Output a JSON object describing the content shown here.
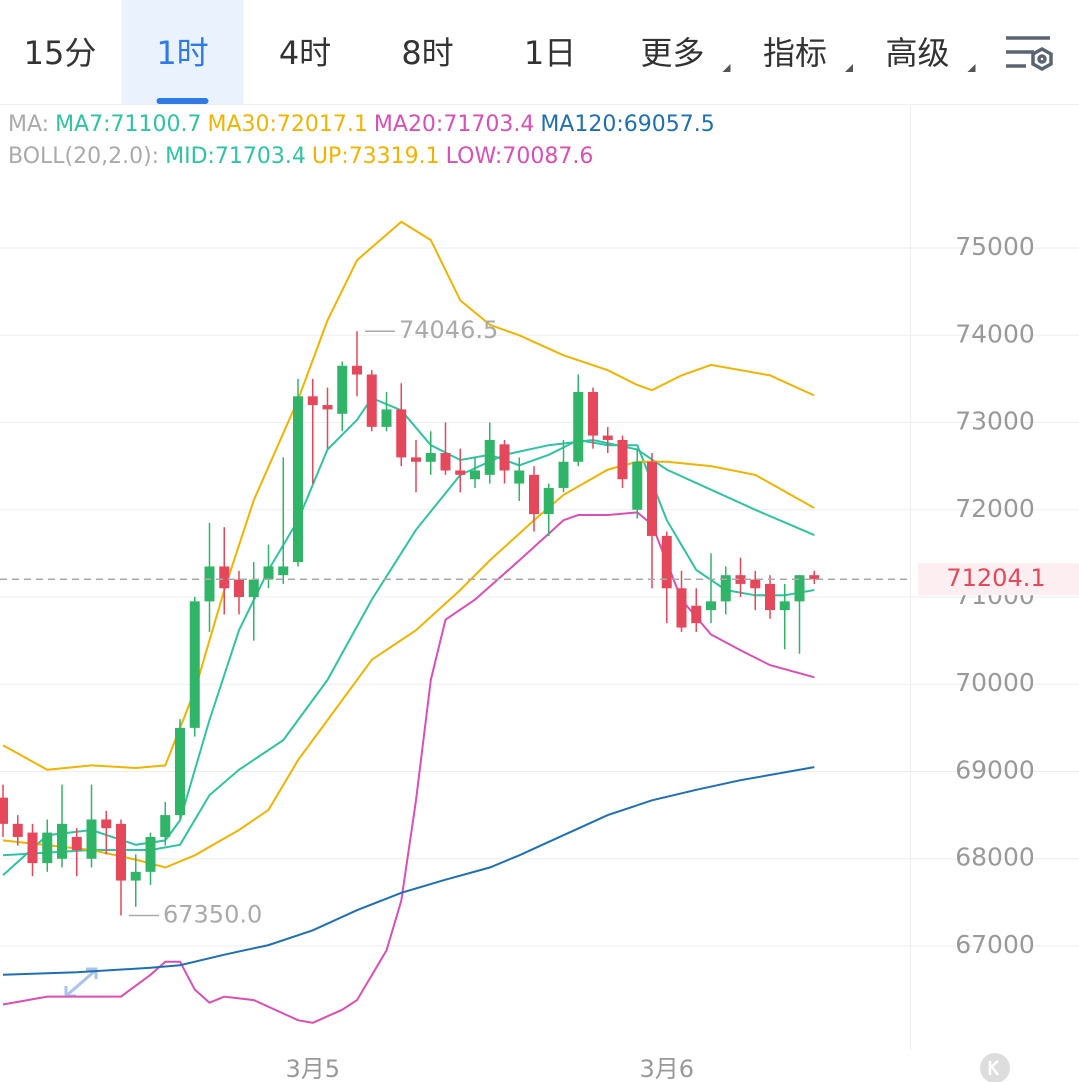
{
  "tabs": [
    {
      "label": "15分"
    },
    {
      "label": "1时"
    },
    {
      "label": "4时"
    },
    {
      "label": "8时"
    },
    {
      "label": "1日"
    },
    {
      "label": "更多",
      "dropdown": true
    },
    {
      "label": "指标",
      "dropdown": true
    },
    {
      "label": "高级",
      "dropdown": true
    }
  ],
  "active_tab": 1,
  "chart_data": {
    "type": "candlestick",
    "legend": [
      {
        "prefix": "MA:",
        "items": [
          {
            "text": "MA7:71100.7",
            "color": "#2fc3a2"
          },
          {
            "text": "MA30:72017.1",
            "color": "#f0b400"
          },
          {
            "text": "MA20:71703.4",
            "color": "#d94fb5"
          },
          {
            "text": "MA120:69057.5",
            "color": "#1f6fb2"
          }
        ]
      },
      {
        "prefix": "BOLL(20,2.0):",
        "items": [
          {
            "text": "MID:71703.4",
            "color": "#2fc3a2"
          },
          {
            "text": "UP:73319.1",
            "color": "#f0b400"
          },
          {
            "text": "LOW:70087.6",
            "color": "#d94fb5"
          }
        ]
      }
    ],
    "categories": [
      null,
      null,
      null,
      null,
      null,
      null,
      null,
      null,
      null,
      null,
      null,
      null,
      null,
      null,
      null,
      null,
      null,
      null,
      null,
      null,
      null,
      "3月5",
      null,
      null,
      null,
      null,
      null,
      null,
      null,
      null,
      null,
      null,
      null,
      null,
      null,
      null,
      null,
      null,
      null,
      null,
      null,
      null,
      null,
      null,
      null,
      "3月6",
      null,
      null,
      null,
      null,
      null,
      null,
      null,
      null,
      null,
      null
    ],
    "open": [
      68700,
      68400,
      68300,
      67950,
      68000,
      68250,
      68000,
      68450,
      68400,
      67750,
      67850,
      68250,
      68500,
      69500,
      70950,
      71350,
      71200,
      71000,
      71200,
      71250,
      71400,
      73300,
      73200,
      73100,
      73650,
      73550,
      72950,
      73150,
      72600,
      72550,
      72650,
      72450,
      72350,
      72400,
      72750,
      72300,
      72400,
      71950,
      72250,
      72550,
      73350,
      72850,
      72800,
      72000,
      72550,
      71700,
      71100,
      70900,
      70850,
      70950,
      71250,
      71200,
      71150,
      70850,
      70950,
      71250
    ],
    "high": [
      68850,
      68500,
      68400,
      68450,
      68850,
      68350,
      68850,
      68550,
      68450,
      68050,
      68300,
      68650,
      69600,
      71000,
      71850,
      71800,
      71300,
      71400,
      71600,
      72600,
      73500,
      73500,
      73400,
      73700,
      74046.5,
      73600,
      73350,
      73450,
      72800,
      72900,
      73000,
      72700,
      72600,
      73000,
      72800,
      72600,
      72500,
      72300,
      72800,
      73550,
      73400,
      72950,
      72850,
      72700,
      72650,
      71750,
      71300,
      71100,
      71500,
      71350,
      71450,
      71300,
      71250,
      71150,
      71250,
      71300
    ],
    "low": [
      68250,
      68150,
      67800,
      67850,
      67900,
      67800,
      67900,
      68050,
      67350,
      67450,
      67700,
      68150,
      68450,
      69400,
      70600,
      70800,
      70800,
      70500,
      71100,
      71150,
      71350,
      72300,
      72700,
      72900,
      73300,
      72900,
      72900,
      72500,
      72200,
      72400,
      72400,
      72200,
      72250,
      72300,
      72300,
      72100,
      71750,
      71700,
      72200,
      72500,
      72700,
      72650,
      72250,
      71900,
      71100,
      70700,
      70600,
      70600,
      70700,
      70800,
      71000,
      70850,
      70750,
      70400,
      70350,
      71150
    ],
    "close": [
      68400,
      68250,
      67950,
      68300,
      68400,
      68100,
      68450,
      68350,
      67750,
      67850,
      68250,
      68500,
      69500,
      70950,
      71350,
      71100,
      71000,
      71200,
      71350,
      71350,
      73300,
      73200,
      73150,
      73650,
      73550,
      72950,
      73150,
      72600,
      72550,
      72650,
      72450,
      72400,
      72450,
      72800,
      72450,
      72450,
      71950,
      72250,
      72550,
      73350,
      72850,
      72800,
      72350,
      72550,
      71700,
      71100,
      70650,
      70700,
      70950,
      71250,
      71150,
      71100,
      70850,
      70950,
      71250,
      71204.1
    ],
    "up_color": "#2fb468",
    "down_color": "#e5475b",
    "series": [
      {
        "color": "#f0b400",
        "x": [
          0,
          3,
          6,
          9,
          11,
          13,
          15,
          17,
          20,
          22,
          24,
          27,
          29,
          31,
          33,
          35,
          38,
          41,
          43,
          44,
          46,
          48,
          52,
          55
        ],
        "values": [
          69300,
          69020,
          69070,
          69040,
          69070,
          69930,
          71080,
          72110,
          73260,
          74170,
          74860,
          75300,
          75090,
          74400,
          74120,
          74000,
          73770,
          73600,
          73430,
          73370,
          73540,
          73660,
          73540,
          73310
        ]
      },
      {
        "color": "#2fc3a2",
        "x": [
          0,
          6,
          10,
          12,
          14,
          16,
          19,
          22,
          25,
          28,
          31,
          34,
          37,
          40,
          43,
          45,
          48,
          51,
          55
        ],
        "values": [
          68040,
          68100,
          68100,
          68160,
          68730,
          69020,
          69360,
          70050,
          70970,
          71770,
          72400,
          72630,
          72740,
          72800,
          72690,
          72460,
          72230,
          72000,
          71710
        ]
      },
      {
        "color": "#2fc3a2",
        "x": [
          0,
          3,
          6,
          9,
          11,
          12,
          14,
          16,
          18,
          20,
          22,
          24,
          25,
          27,
          29,
          31,
          33,
          35,
          37,
          39,
          41,
          43,
          45,
          47,
          49,
          51,
          53,
          55
        ],
        "values": [
          67810,
          68270,
          68330,
          68160,
          68210,
          68440,
          69590,
          70620,
          71310,
          71880,
          72690,
          73030,
          73280,
          73140,
          72740,
          72570,
          72630,
          72510,
          72630,
          72800,
          72740,
          72740,
          71880,
          71310,
          71080,
          71020,
          71020,
          71080
        ]
      },
      {
        "color": "#f0b400",
        "x": [
          0,
          6,
          9,
          11,
          13,
          16,
          18,
          20,
          23,
          25,
          28,
          31,
          33,
          36,
          38,
          41,
          43,
          45,
          48,
          51,
          55
        ],
        "values": [
          68210,
          68100,
          67990,
          67900,
          68040,
          68330,
          68560,
          69130,
          69820,
          70280,
          70620,
          71080,
          71420,
          71880,
          72170,
          72460,
          72550,
          72550,
          72500,
          72400,
          72020
        ]
      },
      {
        "color": "#d94fb5",
        "x": [
          0,
          3,
          6,
          8,
          10,
          11,
          12,
          13,
          14,
          15,
          17,
          20,
          21,
          23,
          24,
          26,
          27,
          28,
          29,
          30,
          32,
          35,
          38,
          39,
          41,
          43,
          44,
          46,
          48,
          50,
          52,
          55
        ],
        "values": [
          66330,
          66420,
          66420,
          66420,
          66670,
          66820,
          66820,
          66500,
          66350,
          66420,
          66380,
          66150,
          66120,
          66270,
          66380,
          66950,
          67520,
          68670,
          70050,
          70740,
          70970,
          71420,
          71880,
          71940,
          71940,
          71970,
          71830,
          70970,
          70570,
          70390,
          70220,
          70080
        ]
      },
      {
        "color": "#1f6fb2",
        "x": [
          0,
          5,
          10,
          12,
          15,
          18,
          21,
          24,
          27,
          30,
          33,
          35,
          38,
          41,
          44,
          47,
          50,
          55
        ],
        "values": [
          66670,
          66700,
          66750,
          66780,
          66900,
          67010,
          67180,
          67410,
          67610,
          67760,
          67900,
          68040,
          68270,
          68500,
          68670,
          68790,
          68900,
          69050
        ]
      }
    ],
    "annotations": [
      {
        "value": 74046.5,
        "x": 24
      },
      {
        "value": 67350,
        "label": "67350.0",
        "x": 8
      }
    ],
    "last_price": 71204.1,
    "ylim": [
      65808,
      76639
    ],
    "yticks": [
      67000,
      68000,
      69000,
      70000,
      71000,
      72000,
      73000,
      74000,
      75000
    ],
    "grid": true
  }
}
